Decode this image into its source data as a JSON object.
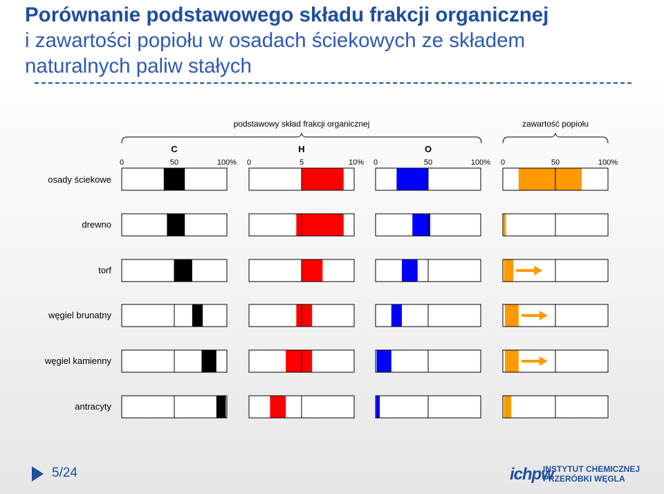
{
  "title": {
    "line1": "Porównanie podstawowego składu frakcji organicznej",
    "line2": "i zawartości popiołu w osadach ściekowych ze składem",
    "line3": "naturalnych paliw stałych"
  },
  "footer": {
    "page": "5/24"
  },
  "logo": {
    "mark": "ICHPW",
    "line1": "INSTYTUT CHEMICZNEJ",
    "line2": "PRZERÓBKI WĘGLA"
  },
  "colors": {
    "C": "#000000",
    "H": "#ff0000",
    "O": "#0000ff",
    "ash": "#ff9900",
    "title": "#1f4e9e"
  },
  "chart_data": {
    "type": "bar",
    "subtype": "range-bars",
    "group_labels": {
      "organic": "podstawowy skład frakcji organicznej",
      "ash": "zawartość popiołu"
    },
    "categories": [
      "osady ściekowe",
      "drewno",
      "torf",
      "węgiel brunatny",
      "węgiel kamienny",
      "antracyty"
    ],
    "panels": [
      {
        "key": "C",
        "label": "C",
        "color": "#000000",
        "range": [
          0,
          100
        ],
        "ticks": [
          "0",
          "50",
          "100%"
        ],
        "values": [
          [
            40,
            60
          ],
          [
            43,
            60
          ],
          [
            50,
            67
          ],
          [
            67,
            77
          ],
          [
            76,
            90
          ],
          [
            90,
            99
          ]
        ]
      },
      {
        "key": "H",
        "label": "H",
        "color": "#ff0000",
        "range": [
          0,
          10
        ],
        "ticks": [
          "0",
          "5",
          "10%"
        ],
        "values": [
          [
            5,
            9
          ],
          [
            4.5,
            9
          ],
          [
            5,
            7
          ],
          [
            4.5,
            6
          ],
          [
            3.5,
            6
          ],
          [
            2,
            3.5
          ]
        ]
      },
      {
        "key": "O",
        "label": "O",
        "color": "#0000ff",
        "range": [
          0,
          100
        ],
        "ticks": [
          "0",
          "50",
          "100%"
        ],
        "values": [
          [
            20,
            50
          ],
          [
            35,
            52
          ],
          [
            25,
            40
          ],
          [
            15,
            25
          ],
          [
            1,
            15
          ],
          [
            0.5,
            4
          ]
        ]
      },
      {
        "key": "ash",
        "label": "",
        "color": "#ff9900",
        "range": [
          0,
          100
        ],
        "ticks": [
          "0",
          "50",
          "100%"
        ],
        "values": [
          [
            15,
            75
          ],
          [
            0.5,
            3
          ],
          [
            1,
            10
          ],
          [
            2,
            15
          ],
          [
            2,
            15
          ],
          [
            1,
            8
          ]
        ],
        "extends_beyond": [
          false,
          false,
          true,
          true,
          true,
          false
        ]
      }
    ]
  }
}
